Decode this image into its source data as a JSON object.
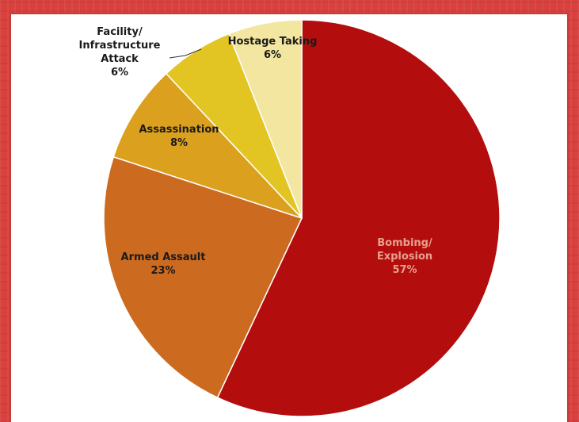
{
  "chart_data": {
    "type": "pie",
    "slices": [
      {
        "label_lines": [
          "Bombing/",
          "Explosion"
        ],
        "percent_label": "57%",
        "value": 57,
        "color": "#b30d0d",
        "text_color": "#e8a08c"
      },
      {
        "label_lines": [
          "Armed Assault"
        ],
        "percent_label": "23%",
        "value": 23,
        "color": "#cc6a20",
        "text_color": "#1a1a1a"
      },
      {
        "label_lines": [
          "Assassination"
        ],
        "percent_label": "8%",
        "value": 8,
        "color": "#dba11e",
        "text_color": "#1a1a1a"
      },
      {
        "label_lines": [
          "Facility/",
          "Infrastructure",
          "Attack"
        ],
        "percent_label": "6%",
        "value": 6,
        "color": "#e2c423",
        "text_color": "#1a1a1a"
      },
      {
        "label_lines": [
          "Hostage Taking"
        ],
        "percent_label": "6%",
        "value": 6,
        "color": "#f2e6a0",
        "text_color": "#1a1a1a"
      }
    ],
    "start": "12 o'clock",
    "direction": "clockwise"
  }
}
